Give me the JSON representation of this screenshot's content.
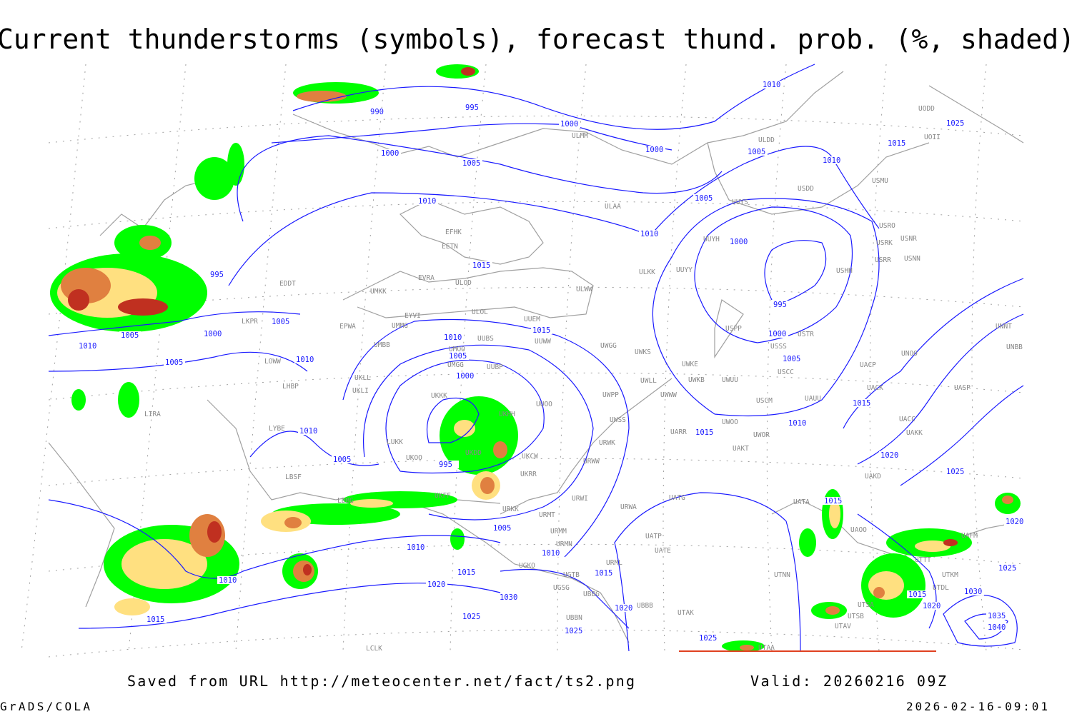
{
  "title": "Current thunderstorms (symbols), forecast thund. prob. (%, shaded)",
  "footer": {
    "source": "Saved from URL http://meteocenter.net/fact/ts2.png",
    "valid": "Valid: 20260216 09Z",
    "software": "GrADS/COLA",
    "timestamp": "2026-02-16-09:01"
  },
  "colors": {
    "isobar": "#1a1aff",
    "coastline": "#a0a0a0",
    "grid": "#a0a0a0",
    "prob_low": "#00ff00",
    "prob_mid": "#ffe080",
    "prob_high": "#e08040",
    "prob_max": "#c03020"
  },
  "isobars": {
    "labels": [
      "990",
      "995",
      "1000",
      "1000",
      "1000",
      "1005",
      "1005",
      "1010",
      "1010",
      "1015",
      "1025",
      "1010",
      "1005",
      "1010",
      "1000",
      "995",
      "1000",
      "1005",
      "1010",
      "1015",
      "1020",
      "1025",
      "995",
      "1005",
      "1000",
      "1005",
      "1010",
      "1005",
      "1010",
      "1015",
      "1015",
      "1010",
      "1005",
      "1000",
      "1010",
      "1005",
      "995",
      "1015",
      "1005",
      "1010",
      "1010",
      "1015",
      "1015",
      "1020",
      "1030",
      "1025",
      "1025",
      "1020",
      "1010",
      "1015",
      "1025",
      "1015",
      "1020",
      "1025",
      "1015",
      "1020",
      "1030",
      "1035",
      "1040"
    ]
  },
  "stations": [
    "ULAA",
    "EFHK",
    "EETN",
    "EVRA",
    "ULOD",
    "ULWW",
    "UMKK",
    "EYVI",
    "ULOL",
    "UUEM",
    "EPWA",
    "UMMG",
    "UUWW",
    "UMBB",
    "UMOO",
    "UUBS",
    "UWGG",
    "UWKS",
    "UKLL",
    "UKLI",
    "UMGG",
    "UUBP",
    "UKKK",
    "UUOO",
    "UKHH",
    "UWPP",
    "UWKE",
    "UWKB",
    "UWUU",
    "UWLL",
    "UWWW",
    "USCM",
    "UAUU",
    "USCC",
    "USSS",
    "USTR",
    "USPP",
    "UUYH",
    "UUYY",
    "UUYS",
    "USDD",
    "USMU",
    "USRO",
    "USRK",
    "USRR",
    "USNR",
    "USNN",
    "USHH",
    "ULKK",
    "UACP",
    "UACK",
    "UASP",
    "UNOO",
    "UNNT",
    "UNBB",
    "UACC",
    "UAKK",
    "UWOO",
    "UWOR",
    "UAKT",
    "UARR",
    "URWW",
    "URWK",
    "UWSS",
    "UKCW",
    "UKOO",
    "LUKK",
    "UKDD",
    "UKRR",
    "UKFF",
    "URKK",
    "URMT",
    "URWI",
    "URWA",
    "UATG",
    "UATA",
    "UAOO",
    "UATE",
    "UATP",
    "URMM",
    "URMN",
    "URML",
    "UGKO",
    "UGTB",
    "UBBG",
    "UGSG",
    "UBBB",
    "UBBN",
    "UTAK",
    "UTNN",
    "UTSA",
    "UTSB",
    "UTAV",
    "UTAA",
    "UAFM",
    "UTDL",
    "LIRA",
    "LOWW",
    "LKPR",
    "EDDT",
    "LHBP",
    "LYBE",
    "LBSF",
    "LBBG",
    "LCLK",
    "ULDD",
    "ULMM",
    "UODD",
    "UOII",
    "UAKD",
    "UTTT",
    "UTKM"
  ]
}
